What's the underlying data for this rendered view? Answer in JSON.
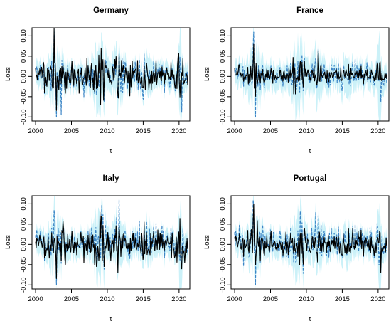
{
  "chart_data": [
    {
      "type": "line",
      "title": "Germany",
      "xlabel": "t",
      "ylabel": "Loss",
      "xlim": [
        1999.5,
        2021.5
      ],
      "ylim": [
        -0.11,
        0.12
      ],
      "xticks": [
        "2000",
        "2005",
        "2010",
        "2015",
        "2020"
      ],
      "yticks": [
        "-0.10",
        "-0.05",
        "0.00",
        "0.05",
        "0.10"
      ],
      "grid": false,
      "series": [
        {
          "style": "solid",
          "color": "#000000",
          "x_range": [
            2000,
            2021.2
          ],
          "approx_range": [
            -0.085,
            0.12
          ]
        },
        {
          "style": "dashed",
          "color": "#3d85c6",
          "x_range": [
            2000,
            2021.2
          ],
          "approx_range": [
            -0.1,
            0.11
          ]
        },
        {
          "style": "band",
          "color": "#b9ecf5",
          "x_range": [
            2000,
            2021.2
          ]
        }
      ]
    },
    {
      "type": "line",
      "title": "France",
      "xlabel": "t",
      "ylabel": "Loss",
      "xlim": [
        1999.5,
        2021.5
      ],
      "ylim": [
        -0.11,
        0.12
      ],
      "xticks": [
        "2000",
        "2005",
        "2010",
        "2015",
        "2020"
      ],
      "yticks": [
        "-0.10",
        "-0.05",
        "0.00",
        "0.05",
        "0.10"
      ],
      "grid": false,
      "series": [
        {
          "style": "solid",
          "color": "#000000",
          "x_range": [
            2000,
            2021.2
          ],
          "approx_range": [
            -0.05,
            0.08
          ]
        },
        {
          "style": "dashed",
          "color": "#3d85c6",
          "x_range": [
            2000,
            2021.2
          ],
          "approx_range": [
            -0.1,
            0.11
          ]
        },
        {
          "style": "band",
          "color": "#b9ecf5",
          "x_range": [
            2000,
            2021.2
          ]
        }
      ]
    },
    {
      "type": "line",
      "title": "Italy",
      "xlabel": "t",
      "ylabel": "Loss",
      "xlim": [
        1999.5,
        2021.5
      ],
      "ylim": [
        -0.11,
        0.12
      ],
      "xticks": [
        "2000",
        "2005",
        "2010",
        "2015",
        "2020"
      ],
      "yticks": [
        "-0.10",
        "-0.05",
        "0.00",
        "0.05",
        "0.10"
      ],
      "grid": false,
      "series": [
        {
          "style": "solid",
          "color": "#000000",
          "x_range": [
            2000,
            2021.2
          ],
          "approx_range": [
            -0.085,
            0.08
          ]
        },
        {
          "style": "dashed",
          "color": "#3d85c6",
          "x_range": [
            2000,
            2021.2
          ],
          "approx_range": [
            -0.1,
            0.11
          ]
        },
        {
          "style": "band",
          "color": "#b9ecf5",
          "x_range": [
            2000,
            2021.2
          ]
        }
      ]
    },
    {
      "type": "line",
      "title": "Portugal",
      "xlabel": "t",
      "ylabel": "Loss",
      "xlim": [
        1999.5,
        2021.5
      ],
      "ylim": [
        -0.11,
        0.12
      ],
      "xticks": [
        "2000",
        "2005",
        "2010",
        "2015",
        "2020"
      ],
      "yticks": [
        "-0.10",
        "-0.05",
        "0.00",
        "0.05",
        "0.10"
      ],
      "grid": false,
      "series": [
        {
          "style": "solid",
          "color": "#000000",
          "x_range": [
            2000,
            2021.2
          ],
          "approx_range": [
            -0.07,
            0.1
          ]
        },
        {
          "style": "dashed",
          "color": "#3d85c6",
          "x_range": [
            2000,
            2021.2
          ],
          "approx_range": [
            -0.1,
            0.11
          ]
        },
        {
          "style": "band",
          "color": "#b9ecf5",
          "x_range": [
            2000,
            2021.2
          ]
        }
      ]
    }
  ]
}
